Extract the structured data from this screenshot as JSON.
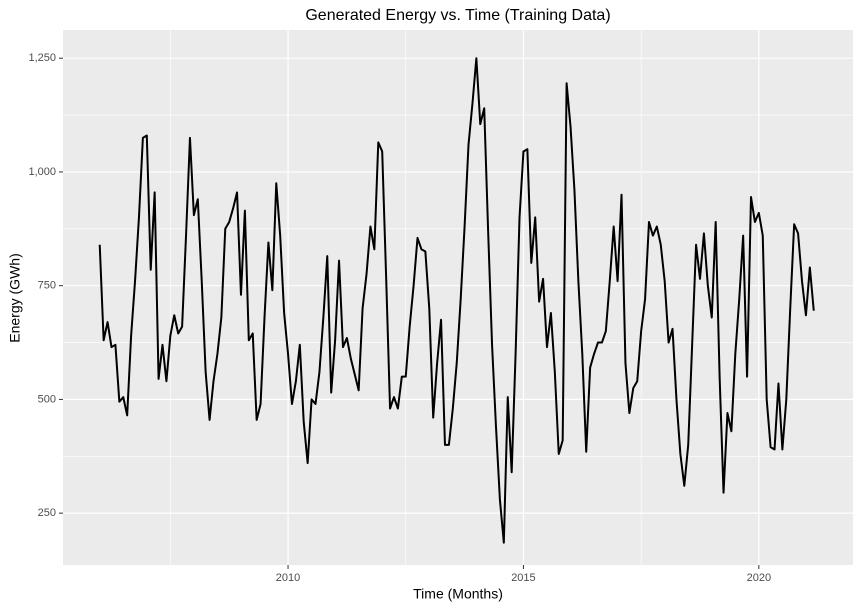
{
  "chart_data": {
    "type": "line",
    "title": "Generated Energy vs. Time (Training Data)",
    "x_label": "Time (Months)",
    "y_label": "Energy (GWh)",
    "x": [
      2006,
      2006.0833,
      2006.1667,
      2006.25,
      2006.3333,
      2006.4167,
      2006.5,
      2006.5833,
      2006.6667,
      2006.75,
      2006.8333,
      2006.9167,
      2007,
      2007.0833,
      2007.1667,
      2007.25,
      2007.3333,
      2007.4167,
      2007.5,
      2007.5833,
      2007.6667,
      2007.75,
      2007.8333,
      2007.9167,
      2008,
      2008.0833,
      2008.1667,
      2008.25,
      2008.3333,
      2008.4167,
      2008.5,
      2008.5833,
      2008.6667,
      2008.75,
      2008.8333,
      2008.9167,
      2009,
      2009.0833,
      2009.1667,
      2009.25,
      2009.3333,
      2009.4167,
      2009.5,
      2009.5833,
      2009.6667,
      2009.75,
      2009.8333,
      2009.9167,
      2010,
      2010.0833,
      2010.1667,
      2010.25,
      2010.3333,
      2010.4167,
      2010.5,
      2010.5833,
      2010.6667,
      2010.75,
      2010.8333,
      2010.9167,
      2011,
      2011.0833,
      2011.1667,
      2011.25,
      2011.3333,
      2011.4167,
      2011.5,
      2011.5833,
      2011.6667,
      2011.75,
      2011.8333,
      2011.9167,
      2012,
      2012.0833,
      2012.1667,
      2012.25,
      2012.3333,
      2012.4167,
      2012.5,
      2012.5833,
      2012.6667,
      2012.75,
      2012.8333,
      2012.9167,
      2013,
      2013.0833,
      2013.1667,
      2013.25,
      2013.3333,
      2013.4167,
      2013.5,
      2013.5833,
      2013.6667,
      2013.75,
      2013.8333,
      2013.9167,
      2014,
      2014.0833,
      2014.1667,
      2014.25,
      2014.3333,
      2014.4167,
      2014.5,
      2014.5833,
      2014.6667,
      2014.75,
      2014.8333,
      2014.9167,
      2015,
      2015.0833,
      2015.1667,
      2015.25,
      2015.3333,
      2015.4167,
      2015.5,
      2015.5833,
      2015.6667,
      2015.75,
      2015.8333,
      2015.9167,
      2016,
      2016.0833,
      2016.1667,
      2016.25,
      2016.3333,
      2016.4167,
      2016.5,
      2016.5833,
      2016.6667,
      2016.75,
      2016.8333,
      2016.9167,
      2017,
      2017.0833,
      2017.1667,
      2017.25,
      2017.3333,
      2017.4167,
      2017.5,
      2017.5833,
      2017.6667,
      2017.75,
      2017.8333,
      2017.9167,
      2018,
      2018.0833,
      2018.1667,
      2018.25,
      2018.3333,
      2018.4167,
      2018.5,
      2018.5833,
      2018.6667,
      2018.75,
      2018.8333,
      2018.9167,
      2019,
      2019.0833,
      2019.1667,
      2019.25,
      2019.3333,
      2019.4167,
      2019.5,
      2019.5833,
      2019.6667,
      2019.75,
      2019.8333,
      2019.9167,
      2020,
      2020.0833,
      2020.1667,
      2020.25,
      2020.3333,
      2020.4167,
      2020.5,
      2020.5833,
      2020.6667,
      2020.75,
      2020.8333,
      2020.9167,
      2021,
      2021.0833,
      2021.1667
    ],
    "values": [
      840,
      630,
      670,
      615,
      620,
      495,
      505,
      465,
      640,
      760,
      900,
      1075,
      1080,
      785,
      955,
      545,
      620,
      540,
      640,
      685,
      645,
      660,
      860,
      1075,
      905,
      940,
      760,
      560,
      455,
      540,
      600,
      680,
      875,
      890,
      920,
      955,
      730,
      915,
      630,
      645,
      455,
      490,
      680,
      845,
      740,
      975,
      860,
      690,
      600,
      490,
      540,
      620,
      450,
      360,
      500,
      490,
      560,
      680,
      815,
      515,
      630,
      805,
      615,
      635,
      590,
      555,
      520,
      700,
      775,
      880,
      830,
      1065,
      1045,
      770,
      480,
      505,
      480,
      550,
      550,
      660,
      750,
      855,
      830,
      825,
      700,
      460,
      580,
      675,
      400,
      400,
      480,
      580,
      720,
      880,
      1060,
      1150,
      1250,
      1105,
      1140,
      870,
      620,
      440,
      280,
      185,
      505,
      340,
      600,
      900,
      1045,
      1050,
      800,
      900,
      715,
      765,
      615,
      690,
      560,
      380,
      410,
      1195,
      1100,
      960,
      760,
      600,
      385,
      570,
      600,
      625,
      625,
      650,
      760,
      880,
      760,
      950,
      580,
      470,
      525,
      540,
      650,
      720,
      890,
      860,
      880,
      840,
      760,
      625,
      655,
      500,
      380,
      310,
      400,
      620,
      840,
      765,
      865,
      750,
      680,
      890,
      550,
      295,
      470,
      430,
      600,
      720,
      860,
      550,
      945,
      890,
      910,
      860,
      500,
      395,
      390,
      535,
      390,
      500,
      700,
      885,
      865,
      760,
      685,
      790,
      695
    ],
    "color": "#000000",
    "xlim": [
      2005.22,
      2022.0
    ],
    "ylim": [
      136,
      1312
    ],
    "xticks": [
      2010,
      2015,
      2020
    ],
    "yticks": [
      250,
      500,
      750,
      {
        "value": 1000,
        "label": "1,000"
      },
      {
        "value": 1250,
        "label": "1,250"
      }
    ],
    "grid": true
  }
}
